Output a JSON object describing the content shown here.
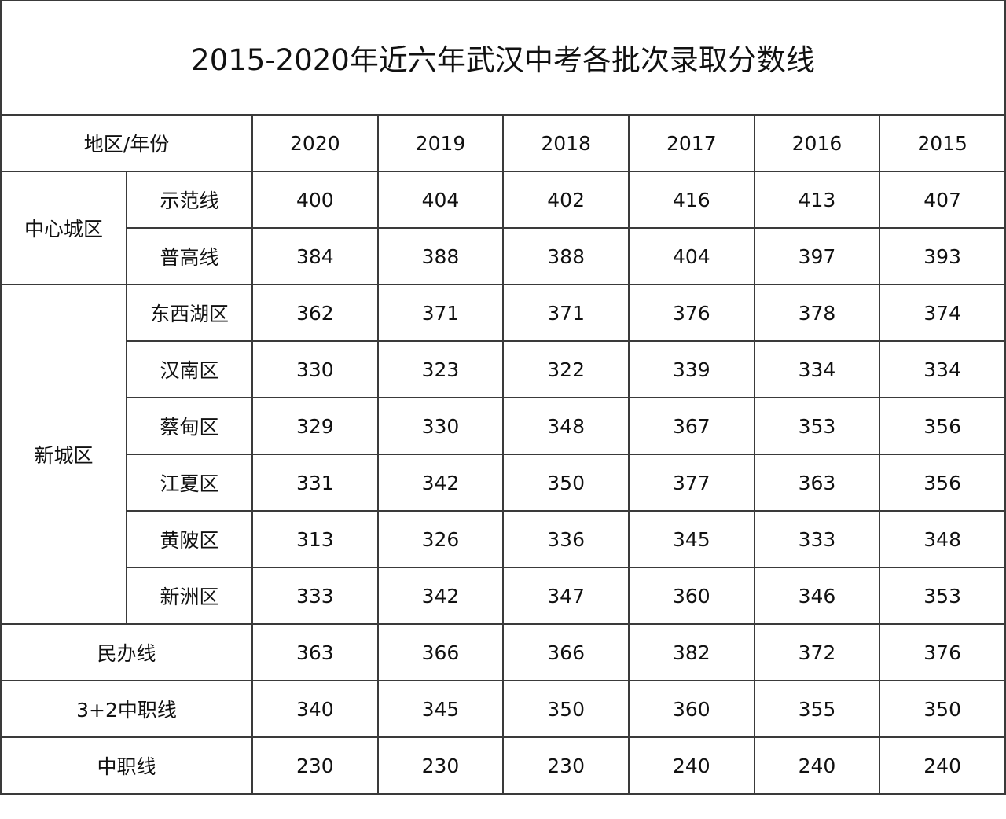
{
  "title": "2015-2020年近六年武汉中考各批次录取分数线",
  "header": {
    "label": "地区/年份",
    "years": [
      "2020",
      "2019",
      "2018",
      "2017",
      "2016",
      "2015"
    ]
  },
  "groups": [
    {
      "name": "中心城区",
      "rows": [
        {
          "label": "示范线",
          "values": [
            400,
            404,
            402,
            416,
            413,
            407
          ]
        },
        {
          "label": "普高线",
          "values": [
            384,
            388,
            388,
            404,
            397,
            393
          ]
        }
      ]
    },
    {
      "name": "新城区",
      "rows": [
        {
          "label": "东西湖区",
          "values": [
            362,
            371,
            371,
            376,
            378,
            374
          ]
        },
        {
          "label": "汉南区",
          "values": [
            330,
            323,
            322,
            339,
            334,
            334
          ]
        },
        {
          "label": "蔡甸区",
          "values": [
            329,
            330,
            348,
            367,
            353,
            356
          ]
        },
        {
          "label": "江夏区",
          "values": [
            331,
            342,
            350,
            377,
            363,
            356
          ]
        },
        {
          "label": "黄陂区",
          "values": [
            313,
            326,
            336,
            345,
            333,
            348
          ]
        },
        {
          "label": "新洲区",
          "values": [
            333,
            342,
            347,
            360,
            346,
            353
          ]
        }
      ]
    }
  ],
  "rows": [
    {
      "label": "民办线",
      "values": [
        363,
        366,
        366,
        382,
        372,
        376
      ]
    },
    {
      "label": "3+2中职线",
      "values": [
        340,
        345,
        350,
        360,
        355,
        350
      ]
    },
    {
      "label": "中职线",
      "values": [
        230,
        230,
        230,
        240,
        240,
        240
      ]
    }
  ]
}
